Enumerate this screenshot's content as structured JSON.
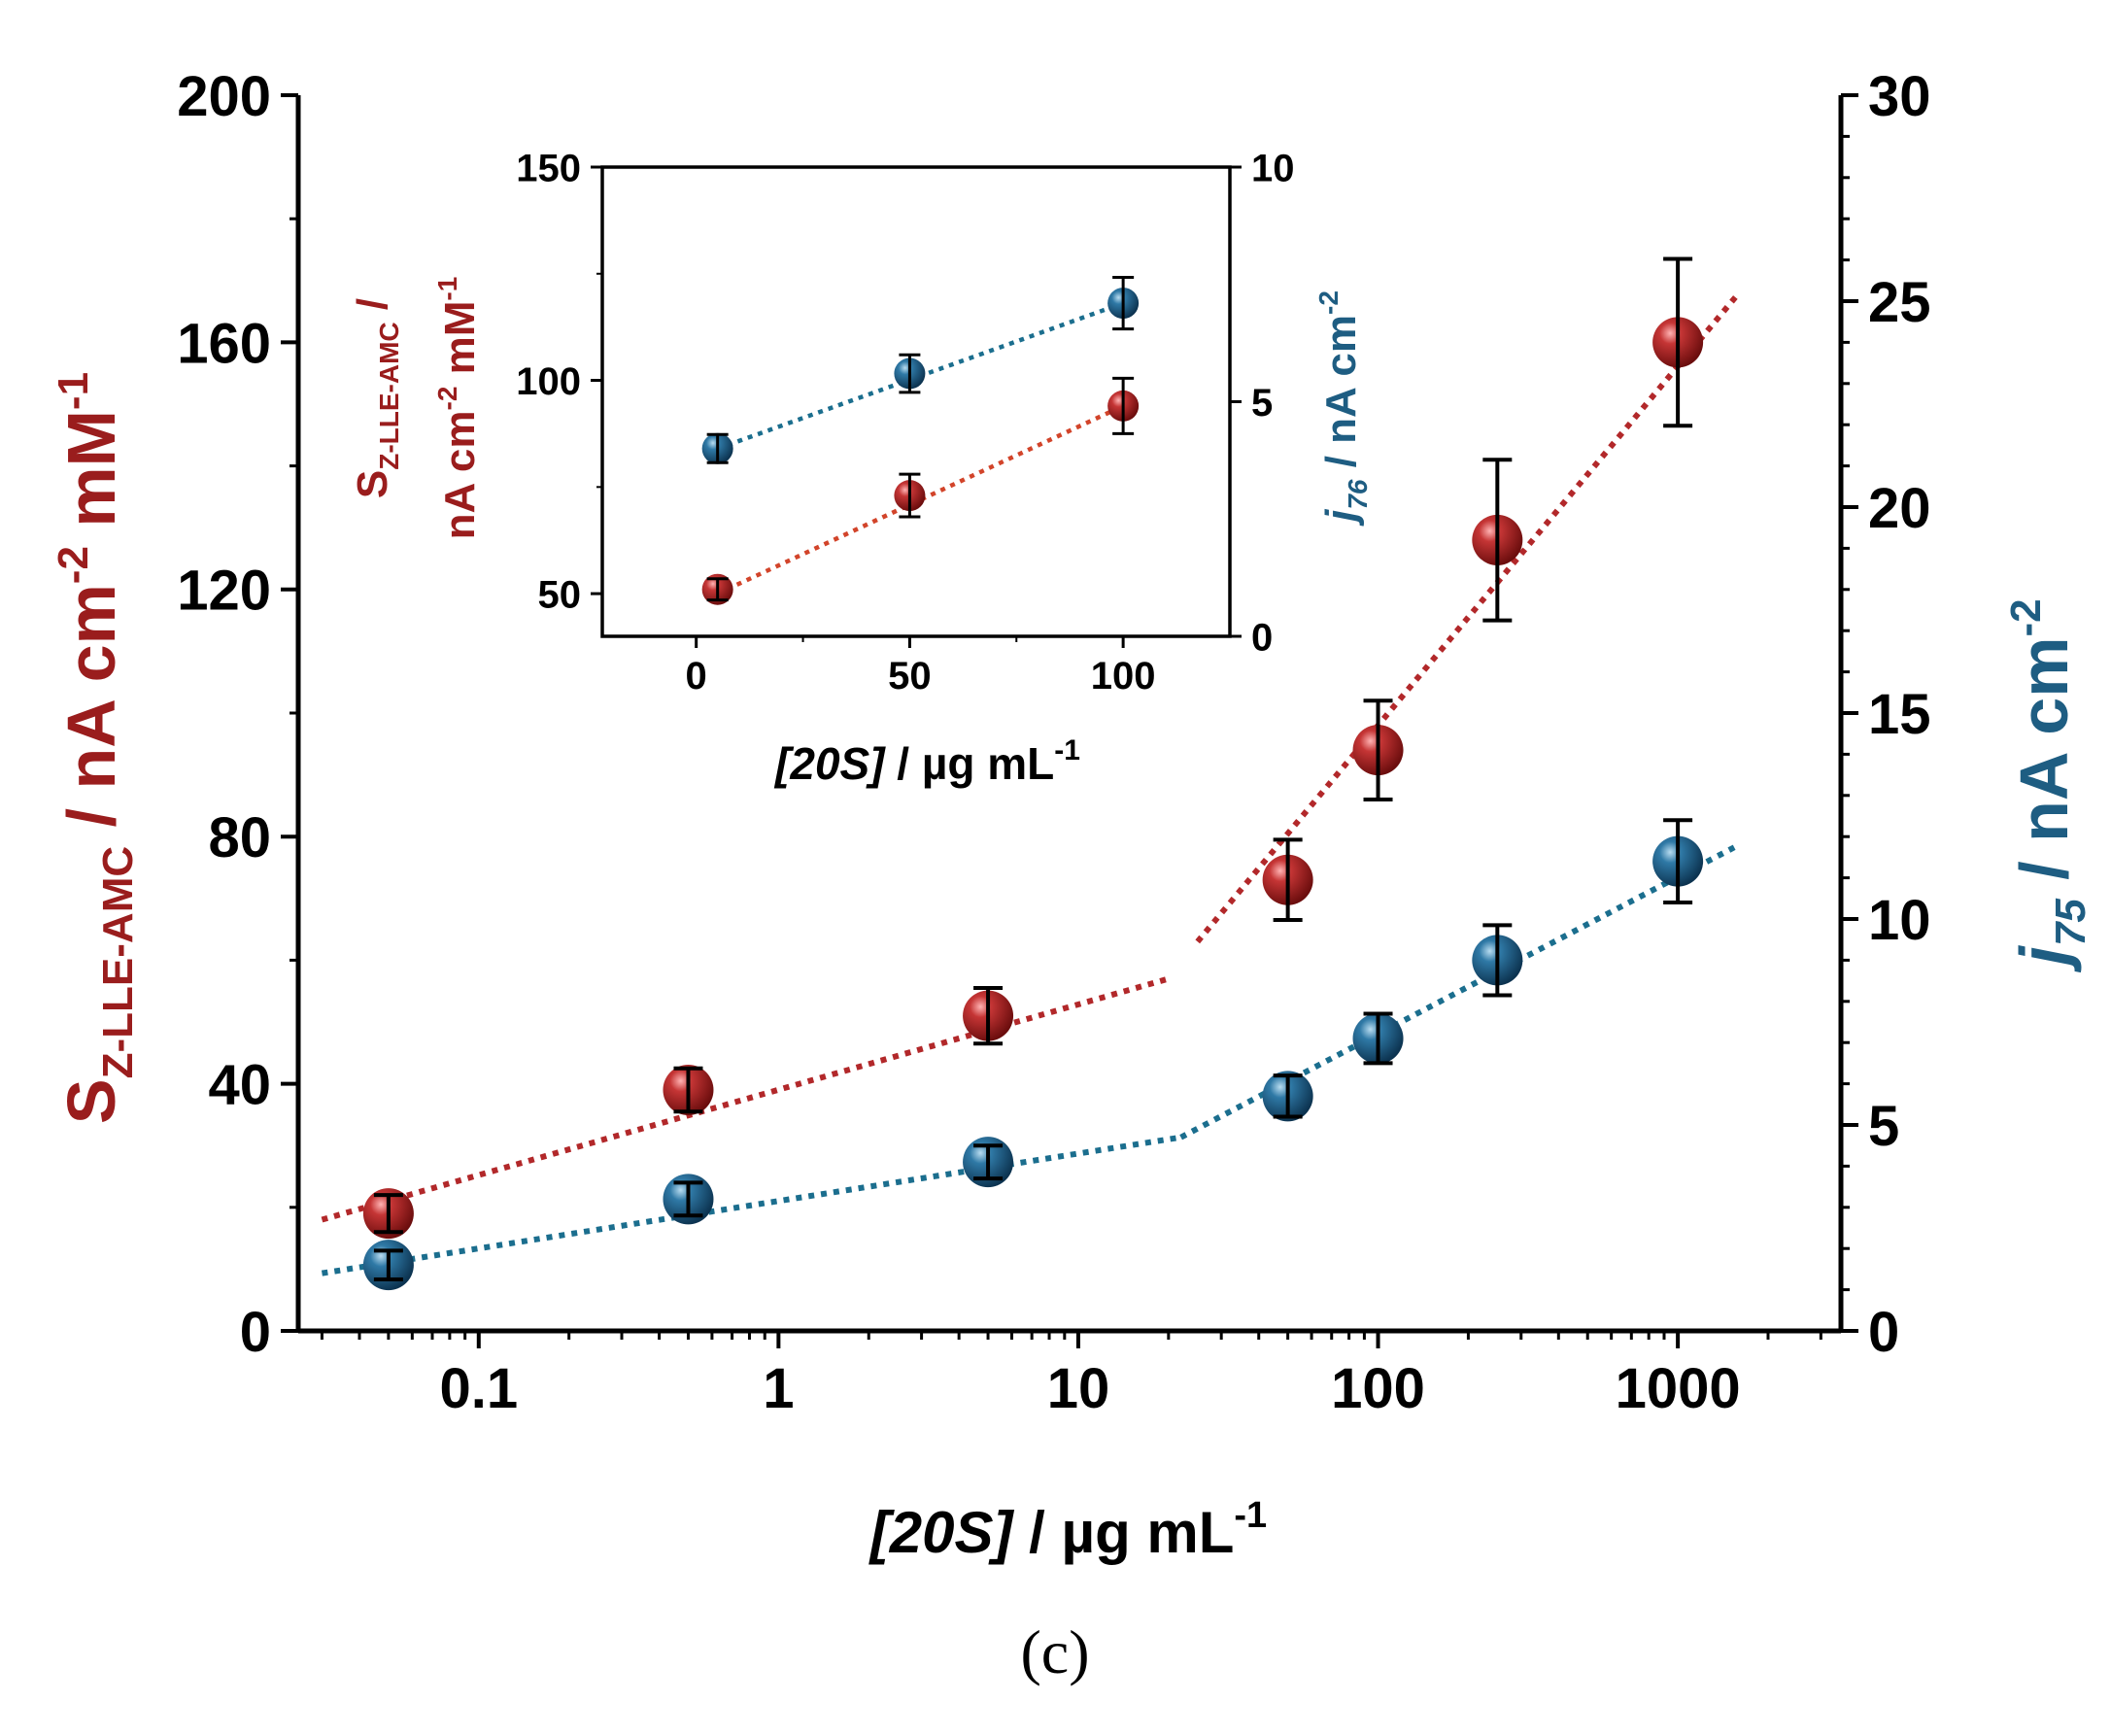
{
  "colors": {
    "red": "#9a1d1d",
    "blue": "#1e5d82",
    "red_line": "#b2282a",
    "red_line_inset": "#d2442a",
    "blue_line": "#1b6e8e"
  },
  "panel_label": "(c)",
  "chart_data": [
    {
      "type": "scatter",
      "title": "",
      "xscale": "log",
      "xlim": [
        0.025,
        3500
      ],
      "xticks": [
        0.1,
        1,
        10,
        100,
        1000
      ],
      "xtick_labels": [
        "0.1",
        "1",
        "10",
        "100",
        "1000"
      ],
      "xlabel_parts": {
        "italic": "[20S]",
        "rest": " / µg mL",
        "sup": "-1"
      },
      "ylim_left": [
        0,
        200
      ],
      "yticks_left": [
        0,
        40,
        80,
        120,
        160,
        200
      ],
      "ylim_right": [
        0,
        30
      ],
      "yticks_right": [
        0,
        5,
        10,
        15,
        20,
        25,
        30
      ],
      "ylabel_left_parts": {
        "main": "S",
        "sub": "Z-LLE-AMC",
        "mid": " / nA cm",
        "sup1": "-2",
        "mid2": " mM",
        "sup2": "-1"
      },
      "ylabel_right_parts": {
        "main": "j",
        "sub": "75",
        "mid": " / nA cm",
        "sup": "-2"
      },
      "series": [
        {
          "name": "S Z-LLE-AMC (left axis)",
          "axis": "left",
          "color": "#9a1d1d",
          "x": [
            0.05,
            0.5,
            5,
            50,
            100,
            250,
            1000
          ],
          "y": [
            19,
            39,
            51,
            73,
            94,
            128,
            160
          ],
          "err": [
            3,
            3.5,
            4.5,
            6.5,
            8,
            13,
            13.5
          ],
          "fits": [
            {
              "x": [
                0.03,
                20
              ],
              "y": [
                18,
                57
              ]
            },
            {
              "x": [
                25,
                1600
              ],
              "y": [
                63,
                168
              ]
            }
          ]
        },
        {
          "name": "j75 (right axis)",
          "axis": "right",
          "color": "#1e5d82",
          "x": [
            0.05,
            0.5,
            5,
            50,
            100,
            250,
            1000
          ],
          "y": [
            1.6,
            3.2,
            4.1,
            5.7,
            7.1,
            9.0,
            11.4
          ],
          "err": [
            0.35,
            0.4,
            0.4,
            0.5,
            0.6,
            0.85,
            1.0
          ],
          "fits": [
            {
              "x": [
                0.03,
                22
              ],
              "y": [
                1.4,
                4.7
              ]
            },
            {
              "x": [
                22,
                1600
              ],
              "y": [
                4.7,
                11.8
              ]
            }
          ]
        }
      ]
    },
    {
      "type": "scatter",
      "title": "inset",
      "xscale": "linear",
      "xlim": [
        -22,
        125
      ],
      "xticks": [
        0,
        50,
        100
      ],
      "xtick_labels": [
        "0",
        "50",
        "100"
      ],
      "xlabel_parts": {
        "italic": "[20S]",
        "rest": " / µg mL",
        "sup": "-1"
      },
      "ylim_left": [
        40,
        150
      ],
      "yticks_left": [
        50,
        100,
        150
      ],
      "ylim_right": [
        0,
        10
      ],
      "yticks_right": [
        0,
        5,
        10
      ],
      "ylabel_left_line1": {
        "main": "S",
        "sub": "Z-LLE-AMC",
        "tail": " /"
      },
      "ylabel_left_line2": {
        "main": "nA cm",
        "sup1": "-2",
        "mid": " mM",
        "sup2": "-1"
      },
      "ylabel_right_parts": {
        "main": "j",
        "sub": "76",
        "mid": " / nA cm",
        "sup": "-2"
      },
      "series": [
        {
          "name": "S Z-LLE-AMC (inset, left axis)",
          "axis": "left",
          "color": "#9a1d1d",
          "x": [
            5,
            50,
            100
          ],
          "y": [
            51,
            73,
            94
          ],
          "err": [
            2.5,
            5,
            6.5
          ],
          "fits": [
            {
              "x": [
                5,
                100
              ],
              "y": [
                50,
                94
              ]
            }
          ]
        },
        {
          "name": "j76 (inset, right axis)",
          "axis": "right",
          "color": "#1e5d82",
          "x": [
            5,
            50,
            100
          ],
          "y": [
            4.0,
            5.6,
            7.1
          ],
          "err": [
            0.3,
            0.4,
            0.55
          ],
          "fits": [
            {
              "x": [
                5,
                100
              ],
              "y": [
                4.0,
                7.1
              ]
            }
          ]
        }
      ]
    }
  ]
}
